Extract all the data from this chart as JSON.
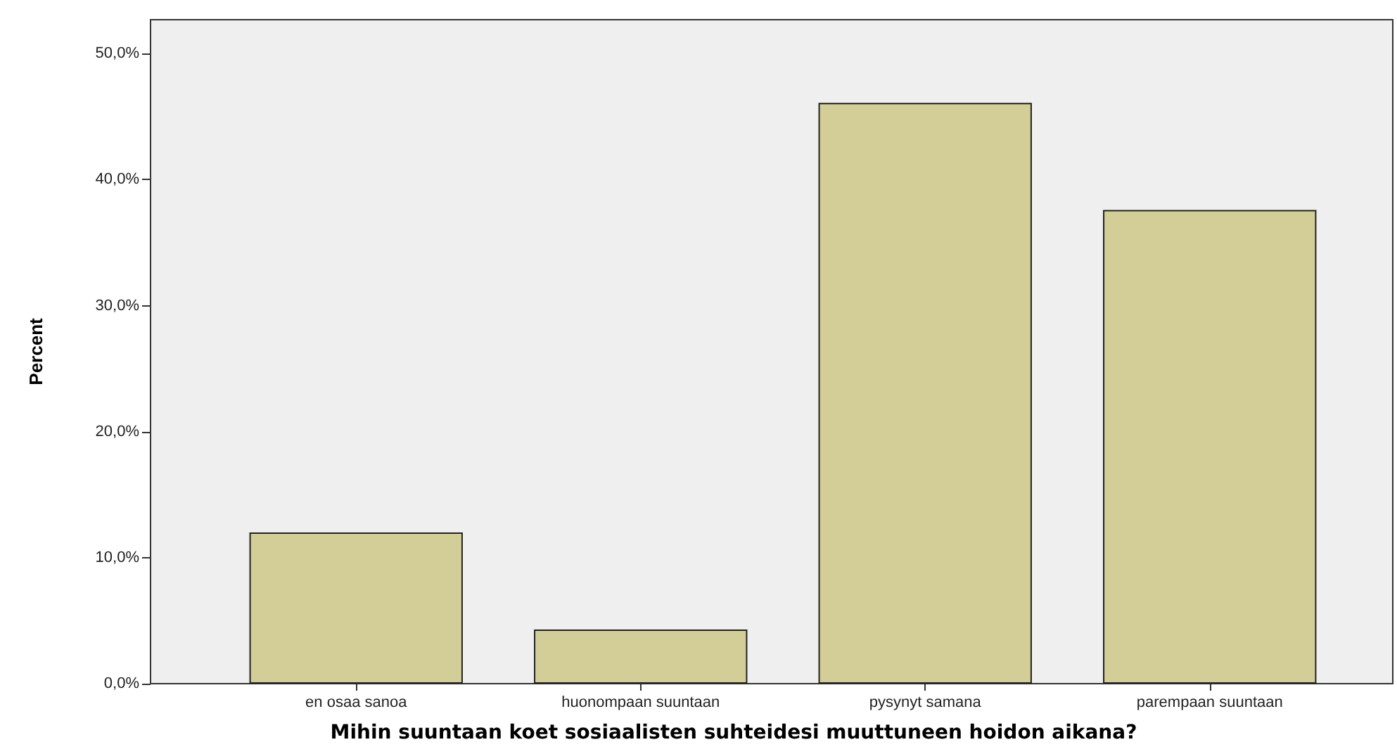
{
  "chart_data": {
    "type": "bar",
    "xlabel": "Mihin suuntaan koet sosiaalisten suhteidesi muuttuneen hoidon aikana?",
    "ylabel": "Percent",
    "categories": [
      "en osaa sanoa",
      "huonompaan suuntaan",
      "pysynyt samana",
      "parempaan suuntaan"
    ],
    "values": [
      12.0,
      4.3,
      46.1,
      37.6
    ],
    "color": "#d3cd97",
    "ylim": [
      0,
      52.7
    ],
    "yticks": [
      {
        "value": 0,
        "label": "0,0%"
      },
      {
        "value": 10,
        "label": "10,0%"
      },
      {
        "value": 20,
        "label": "20,0%"
      },
      {
        "value": 30,
        "label": "30,0%"
      },
      {
        "value": 40,
        "label": "40,0%"
      },
      {
        "value": 50,
        "label": "50,0%"
      }
    ],
    "grid": false
  }
}
